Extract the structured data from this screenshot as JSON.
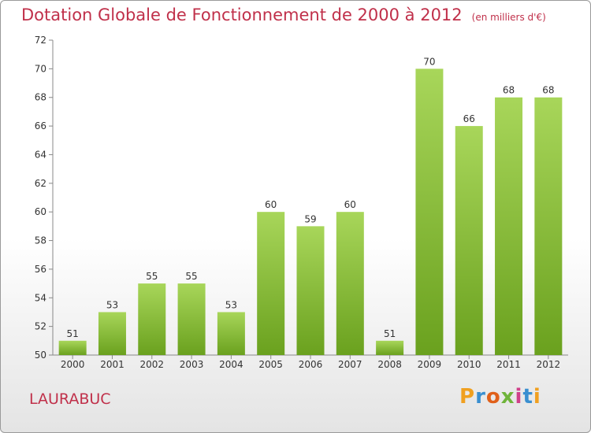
{
  "header": {
    "title": "Dotation Globale de Fonctionnement de 2000 à 2012",
    "subtitle": "(en milliers d'€)"
  },
  "footer": {
    "commune": "LAURABUC",
    "logo": [
      "P",
      "r",
      "o",
      "x",
      "i",
      "t",
      "i"
    ],
    "logo_colors": [
      "#f0a020",
      "#3a8fd0",
      "#e0601a",
      "#6fb43a",
      "#d0408a",
      "#3a8fd0",
      "#f0a020"
    ]
  },
  "chart_data": {
    "type": "bar",
    "title": "Dotation Globale de Fonctionnement de 2000 à 2012",
    "subtitle": "(en milliers d'€)",
    "categories": [
      "2000",
      "2001",
      "2002",
      "2003",
      "2004",
      "2005",
      "2006",
      "2007",
      "2008",
      "2009",
      "2010",
      "2011",
      "2012"
    ],
    "values": [
      51,
      53,
      55,
      55,
      53,
      60,
      59,
      60,
      51,
      70,
      66,
      68,
      68
    ],
    "ylim": [
      50,
      72
    ],
    "yticks": [
      50,
      52,
      54,
      56,
      58,
      60,
      62,
      64,
      66,
      68,
      70,
      72
    ],
    "grid": false,
    "bar_color_top": "#a8d65a",
    "bar_color_bottom": "#6aa11e"
  }
}
